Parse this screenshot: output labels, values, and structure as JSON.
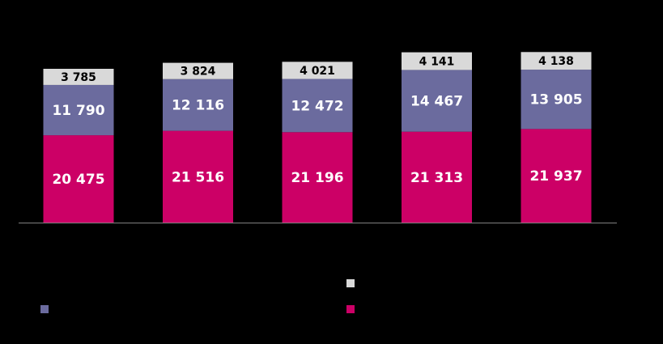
{
  "chart_data": {
    "type": "stacked-bar",
    "categories": [
      null,
      null,
      null,
      null,
      null
    ],
    "series": [
      {
        "color": "#cc0066",
        "values": [
          20475,
          21516,
          21196,
          21313,
          21937
        ],
        "value_labels": [
          "20 475",
          "21 516",
          "21 196",
          "21 313",
          "21 937"
        ]
      },
      {
        "color": "#6b6b9e",
        "values": [
          11790,
          12116,
          12472,
          14467,
          13905
        ],
        "value_labels": [
          "11 790",
          "12 116",
          "12 472",
          "14 467",
          "13 905"
        ]
      },
      {
        "color": "#d9d9d9",
        "values": [
          3785,
          3824,
          4021,
          4141,
          4138
        ],
        "value_labels": [
          "3 785",
          "3 824",
          "4 021",
          "4 141",
          "4 138"
        ]
      }
    ]
  }
}
